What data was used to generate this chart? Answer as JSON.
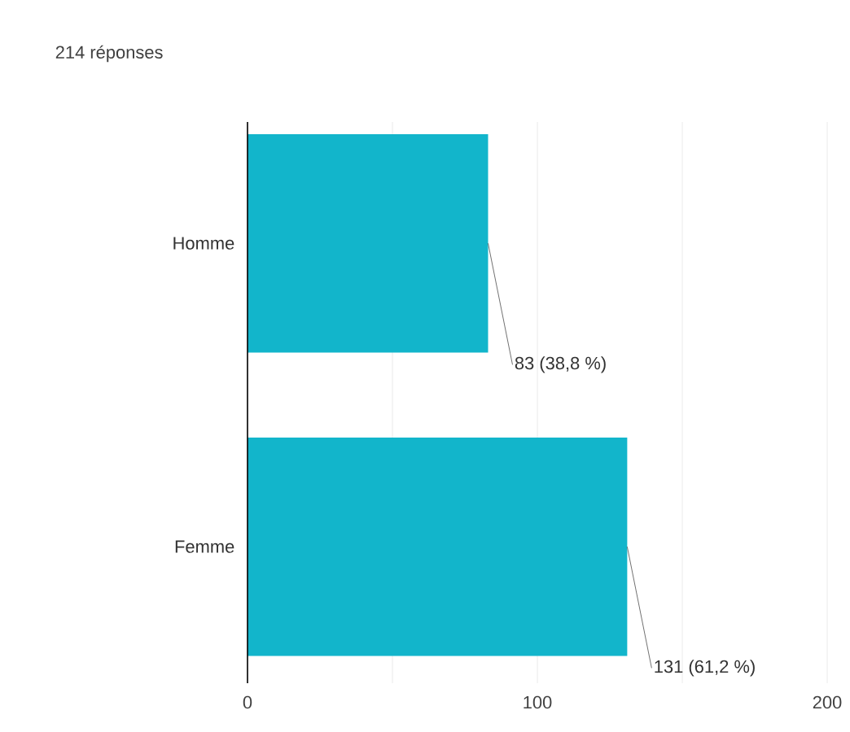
{
  "chart_data": {
    "type": "bar",
    "orientation": "horizontal",
    "title": "214 réponses",
    "categories": [
      "Homme",
      "Femme"
    ],
    "values": [
      83,
      131
    ],
    "color": "#12b5cb",
    "value_labels": [
      "83 (38,8 %)",
      "131 (61,2 %)"
    ],
    "xlim": [
      0,
      200
    ],
    "xticks": [
      0,
      {
        "value": 50,
        "label": null
      },
      100,
      {
        "value": 150,
        "label": null
      },
      200
    ],
    "grid": "x"
  }
}
